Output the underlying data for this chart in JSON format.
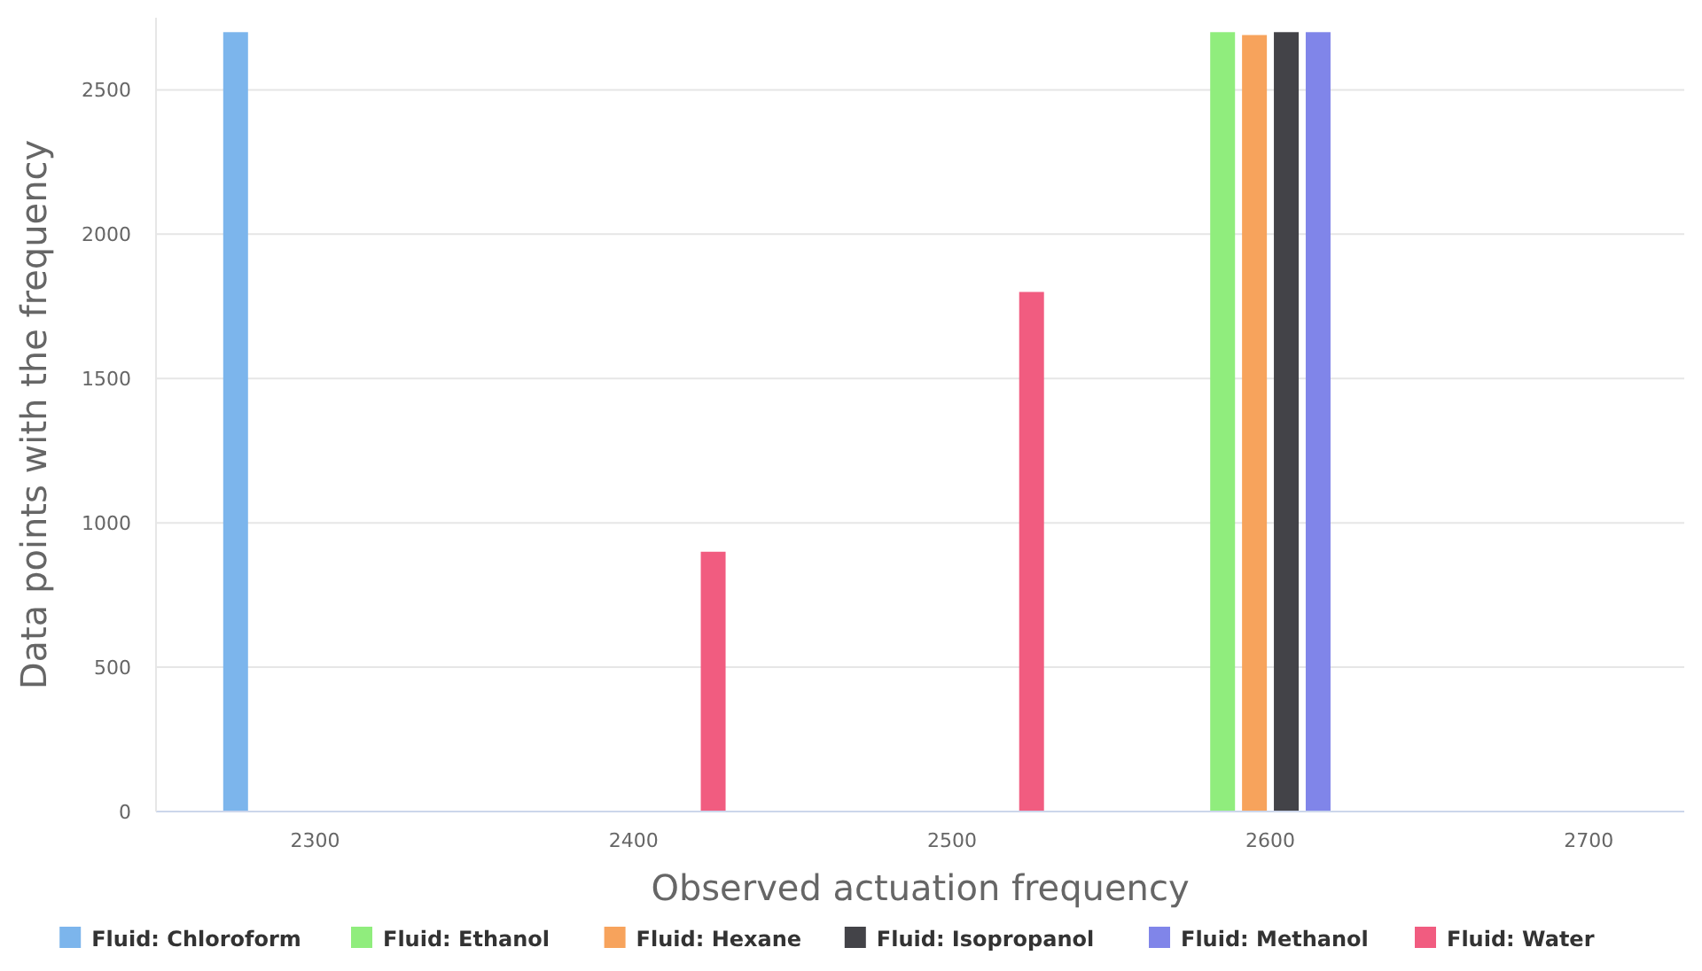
{
  "chart_data": {
    "type": "bar",
    "xlabel": "Observed actuation frequency",
    "ylabel": "Data points with the frequency",
    "xlim": [
      2250,
      2730
    ],
    "xticks": [
      2300,
      2400,
      2500,
      2600,
      2700
    ],
    "ylim": [
      0,
      2750
    ],
    "yticks": [
      0,
      500,
      1000,
      1500,
      2000,
      2500
    ],
    "grid": "y",
    "legend": "bottom",
    "series": [
      {
        "name": "Fluid: Chloroform",
        "color": "#7cb5ec",
        "x": [
          2275
        ],
        "values": [
          2700
        ]
      },
      {
        "name": "Fluid: Ethanol",
        "color": "#90ed7d",
        "x": [
          2585
        ],
        "values": [
          2700
        ]
      },
      {
        "name": "Fluid: Hexane",
        "color": "#f7a35c",
        "x": [
          2595
        ],
        "values": [
          2690
        ]
      },
      {
        "name": "Fluid: Isopropanol",
        "color": "#434348",
        "x": [
          2605
        ],
        "values": [
          2700
        ]
      },
      {
        "name": "Fluid: Methanol",
        "color": "#8085e9",
        "x": [
          2615
        ],
        "values": [
          2700
        ]
      },
      {
        "name": "Fluid: Water",
        "color": "#f15c80",
        "x": [
          2425,
          2525
        ],
        "values": [
          900,
          1800
        ]
      }
    ]
  }
}
